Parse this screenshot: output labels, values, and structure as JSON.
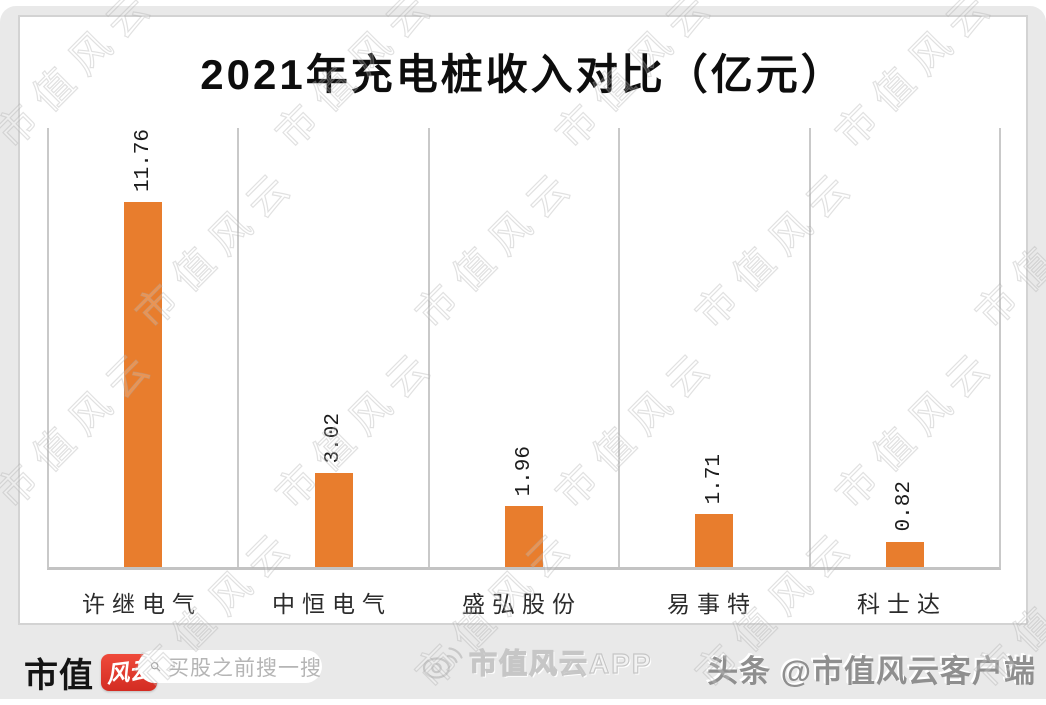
{
  "page": {
    "watermark_text": "市值风云"
  },
  "chart_data": {
    "type": "bar",
    "title": "2021年充电桩收入对比（亿元）",
    "categories": [
      "许继电气",
      "中恒电气",
      "盛弘股份",
      "易事特",
      "科士达"
    ],
    "values": [
      11.76,
      3.02,
      1.96,
      1.71,
      0.82
    ],
    "value_labels": [
      "11.76",
      "3.02",
      "1.96",
      "1.71",
      "0.82"
    ],
    "xlabel": "",
    "ylabel": "",
    "ylim": [
      0,
      14.15
    ],
    "bar_color": "#e87d2d",
    "gridline_color": "#c9c9c9",
    "grid": "vertical category separators, no horizontal gridlines, no y-axis ticks",
    "legend": "none",
    "value_label_orientation": "rotated 90° counterclockwise above each bar"
  },
  "footer": {
    "logo_text": "市值",
    "logo_badge_text": "风云",
    "logo_badge_color": "#dd3227",
    "search_placeholder": "买股之前搜一搜",
    "app_label": "市值风云APP",
    "headline_handle": "头条 @市值风云客户端"
  }
}
